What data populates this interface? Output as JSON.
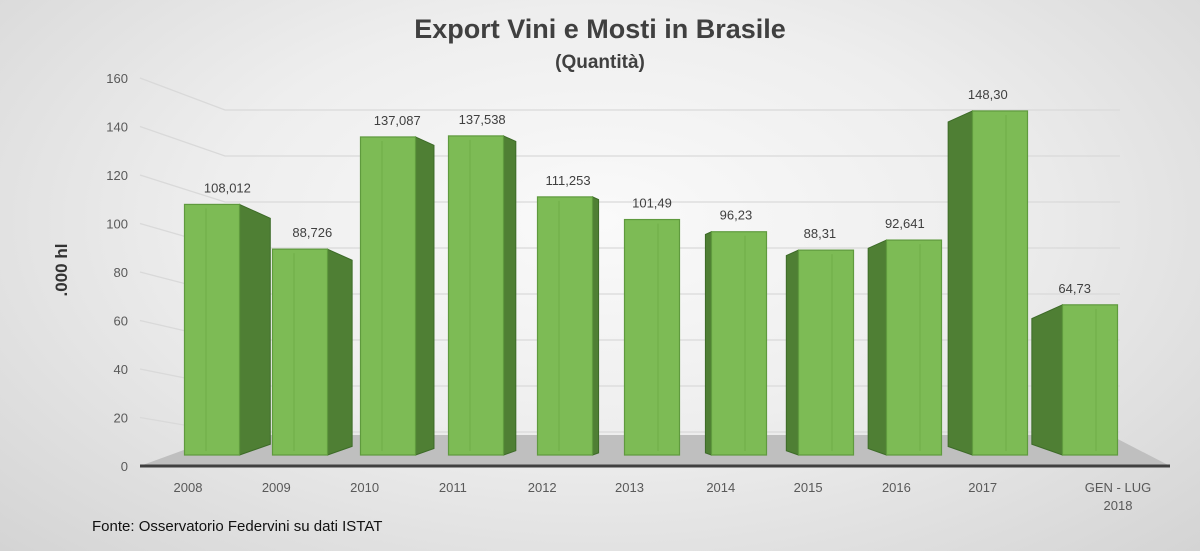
{
  "chart_data": {
    "type": "bar",
    "style": "3d-column",
    "title": "Export Vini e Mosti in Brasile",
    "subtitle": "(Quantità)",
    "ylabel": ".000 hl",
    "xlabel": "",
    "ylim": [
      0,
      160
    ],
    "yticks": [
      0,
      20,
      40,
      60,
      80,
      100,
      120,
      140,
      160
    ],
    "grid": true,
    "categories": [
      "2008",
      "2009",
      "2010",
      "2011",
      "2012",
      "2013",
      "2014",
      "2015",
      "2016",
      "2017",
      "GEN - LUG 2018"
    ],
    "values": [
      108.012,
      88.726,
      137.087,
      137.538,
      111.253,
      101.49,
      96.23,
      88.31,
      92.641,
      148.3,
      64.73
    ],
    "data_labels": [
      "108,012",
      "88,726",
      "137,087",
      "137,538",
      "111,253",
      "101,49",
      "96,23",
      "88,31",
      "92,641",
      "148,30",
      "64,73"
    ],
    "colors": {
      "front": "#7dbb55",
      "side": "#4f7f34",
      "top": "#8fcb63",
      "floor": "#bfbfbf"
    }
  },
  "source": "Fonte: Osservatorio Federvini su dati ISTAT"
}
